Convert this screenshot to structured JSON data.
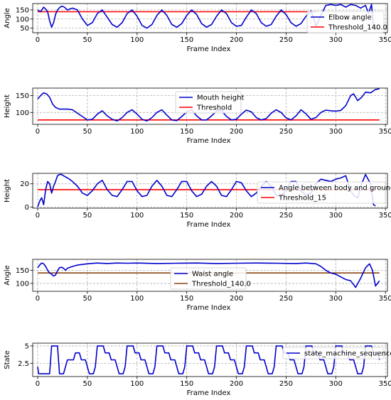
{
  "chart_data": [
    {
      "type": "line",
      "xlabel": "Frame Index",
      "ylabel": "Angle",
      "xlim": [
        -5,
        352
      ],
      "ylim": [
        25,
        185
      ],
      "xticks": [
        0,
        50,
        100,
        150,
        200,
        250,
        300,
        350
      ],
      "yticks": [
        50,
        100,
        150
      ],
      "grid": true,
      "legend_position": "right",
      "series": [
        {
          "name": "Elbow angle",
          "color": "#0000cc",
          "x": [
            0,
            3,
            6,
            8,
            10,
            12,
            14,
            16,
            18,
            20,
            22,
            24,
            26,
            28,
            30,
            35,
            40,
            45,
            50,
            55,
            60,
            65,
            70,
            75,
            80,
            85,
            90,
            95,
            100,
            105,
            110,
            115,
            120,
            125,
            130,
            135,
            140,
            145,
            150,
            155,
            160,
            165,
            170,
            175,
            180,
            185,
            190,
            195,
            200,
            205,
            210,
            215,
            220,
            225,
            230,
            235,
            240,
            245,
            250,
            255,
            260,
            265,
            270,
            275,
            278,
            280,
            285,
            290,
            295,
            300,
            305,
            310,
            315,
            320,
            325,
            330,
            333,
            336,
            338,
            340
          ],
          "y": [
            150,
            140,
            165,
            155,
            140,
            90,
            55,
            80,
            125,
            150,
            162,
            170,
            168,
            160,
            150,
            160,
            150,
            100,
            65,
            80,
            130,
            150,
            110,
            70,
            55,
            80,
            130,
            150,
            115,
            65,
            50,
            70,
            120,
            150,
            120,
            70,
            55,
            75,
            120,
            150,
            125,
            75,
            55,
            70,
            115,
            150,
            130,
            80,
            60,
            65,
            110,
            150,
            130,
            80,
            60,
            70,
            115,
            150,
            125,
            80,
            60,
            75,
            115,
            145,
            100,
            60,
            120,
            175,
            180,
            175,
            180,
            165,
            180,
            175,
            160,
            175,
            130,
            180,
            60,
            40
          ]
        },
        {
          "name": "Threshold_140.0",
          "color": "#ff0000",
          "x": [
            0,
            280
          ],
          "y": [
            140,
            140
          ]
        }
      ]
    },
    {
      "type": "line",
      "xlabel": "Frame Index",
      "ylabel": "Height",
      "xlim": [
        -5,
        352
      ],
      "ylim": [
        65,
        172
      ],
      "xticks": [
        0,
        50,
        100,
        150,
        200,
        250,
        300,
        350
      ],
      "yticks": [
        100,
        150
      ],
      "grid": true,
      "legend_position": "upper center",
      "series": [
        {
          "name": "Mouth height",
          "color": "#0000cc",
          "x": [
            0,
            3,
            6,
            9,
            12,
            15,
            18,
            22,
            26,
            30,
            35,
            40,
            45,
            50,
            55,
            60,
            65,
            70,
            75,
            80,
            85,
            90,
            95,
            100,
            105,
            110,
            115,
            120,
            125,
            130,
            135,
            140,
            145,
            150,
            155,
            160,
            165,
            170,
            175,
            180,
            185,
            190,
            195,
            200,
            205,
            210,
            215,
            220,
            225,
            230,
            235,
            240,
            245,
            250,
            255,
            260,
            265,
            270,
            275,
            280,
            285,
            290,
            295,
            300,
            305,
            310,
            315,
            318,
            322,
            326,
            330,
            335,
            340,
            344
          ],
          "y": [
            140,
            150,
            158,
            155,
            145,
            125,
            115,
            110,
            110,
            110,
            108,
            98,
            88,
            78,
            80,
            95,
            105,
            90,
            80,
            75,
            85,
            100,
            108,
            95,
            80,
            75,
            85,
            100,
            108,
            92,
            78,
            76,
            88,
            102,
            108,
            90,
            78,
            78,
            90,
            104,
            106,
            88,
            78,
            80,
            95,
            107,
            102,
            85,
            78,
            82,
            98,
            108,
            100,
            84,
            78,
            90,
            108,
            96,
            80,
            85,
            100,
            107,
            105,
            104,
            106,
            120,
            150,
            155,
            135,
            145,
            160,
            158,
            168,
            170
          ]
        },
        {
          "name": "Threshold",
          "color": "#ff0000",
          "x": [
            0,
            344
          ],
          "y": [
            78,
            78
          ]
        }
      ]
    },
    {
      "type": "line",
      "xlabel": "Frame Index",
      "ylabel": "Height",
      "xlim": [
        -5,
        352
      ],
      "ylim": [
        -1,
        29
      ],
      "xticks": [
        0,
        50,
        100,
        150,
        200,
        250,
        300,
        350
      ],
      "yticks": [
        0,
        20
      ],
      "grid": true,
      "legend_position": "right",
      "series": [
        {
          "name": "Angle between body and ground",
          "color": "#0000cc",
          "x": [
            0,
            2,
            4,
            6,
            8,
            10,
            12,
            14,
            16,
            18,
            20,
            22,
            24,
            26,
            28,
            30,
            32,
            35,
            40,
            45,
            50,
            55,
            60,
            65,
            70,
            75,
            80,
            85,
            90,
            95,
            100,
            105,
            110,
            115,
            120,
            125,
            130,
            135,
            140,
            145,
            150,
            155,
            160,
            165,
            170,
            175,
            180,
            185,
            190,
            195,
            200,
            205,
            210,
            215,
            220,
            225,
            230,
            235,
            240,
            245,
            250,
            255,
            260,
            265,
            270,
            275,
            280,
            285,
            290,
            295,
            300,
            305,
            310,
            315,
            318,
            322,
            326,
            330,
            335,
            338,
            340
          ],
          "y": [
            0,
            5,
            8,
            2,
            15,
            22,
            20,
            12,
            18,
            22,
            27,
            28,
            28,
            27,
            26,
            25,
            24,
            22,
            18,
            12,
            10,
            14,
            20,
            23,
            15,
            10,
            9,
            15,
            22,
            22,
            14,
            9,
            10,
            18,
            23,
            18,
            10,
            9,
            15,
            22,
            22,
            14,
            9,
            11,
            18,
            22,
            18,
            10,
            9,
            15,
            22,
            21,
            14,
            9,
            12,
            18,
            22,
            18,
            10,
            9,
            15,
            22,
            22,
            14,
            10,
            12,
            20,
            24,
            23,
            22,
            24,
            25,
            27,
            14,
            10,
            8,
            20,
            28,
            20,
            2,
            1
          ]
        },
        {
          "name": "Threshold_15",
          "color": "#ff0000",
          "x": [
            0,
            340
          ],
          "y": [
            15,
            15
          ]
        }
      ]
    },
    {
      "type": "line",
      "xlabel": "Frame Index",
      "ylabel": "Angle",
      "xlim": [
        -5,
        352
      ],
      "ylim": [
        70,
        192
      ],
      "xticks": [
        0,
        50,
        100,
        150,
        200,
        250,
        300,
        350
      ],
      "yticks": [
        100,
        150
      ],
      "grid": true,
      "legend_position": "center",
      "series": [
        {
          "name": "Waist angle",
          "color": "#0000cc",
          "x": [
            0,
            2,
            4,
            6,
            8,
            10,
            12,
            14,
            16,
            18,
            20,
            22,
            24,
            26,
            28,
            30,
            35,
            40,
            50,
            60,
            70,
            80,
            90,
            100,
            120,
            140,
            160,
            180,
            200,
            220,
            240,
            260,
            270,
            280,
            285,
            290,
            295,
            300,
            305,
            310,
            315,
            320,
            325,
            330,
            334,
            337,
            340,
            342,
            344
          ],
          "y": [
            160,
            170,
            178,
            175,
            165,
            150,
            140,
            135,
            128,
            132,
            148,
            160,
            162,
            158,
            150,
            158,
            165,
            170,
            175,
            178,
            176,
            178,
            177,
            178,
            176,
            177,
            178,
            176,
            177,
            178,
            177,
            176,
            178,
            175,
            165,
            150,
            140,
            135,
            125,
            115,
            110,
            85,
            120,
            160,
            175,
            150,
            90,
            100,
            110
          ]
        },
        {
          "name": "Threshold_140.0",
          "color": "#8b4513",
          "x": [
            0,
            344
          ],
          "y": [
            140,
            140
          ]
        }
      ]
    },
    {
      "type": "line",
      "xlabel": "Frame Index",
      "ylabel": "State",
      "xlim": [
        -5,
        352
      ],
      "ylim": [
        0.6,
        5.4
      ],
      "xticks": [
        0,
        50,
        100,
        150,
        200,
        250,
        300,
        350
      ],
      "yticks": [
        2.5,
        5.0
      ],
      "grid": true,
      "legend_position": "upper right",
      "series": [
        {
          "name": "state_machine_sequence",
          "color": "#0000cc",
          "x": [
            0,
            1,
            2,
            4,
            6,
            8,
            10,
            12,
            14,
            16,
            20,
            22,
            24,
            26,
            28,
            30,
            36,
            38,
            42,
            44,
            48,
            50,
            52,
            54,
            56,
            58,
            60,
            66,
            68,
            72,
            74,
            78,
            80,
            82,
            84,
            86,
            88,
            90,
            96,
            98,
            102,
            104,
            108,
            110,
            112,
            114,
            116,
            118,
            120,
            126,
            128,
            132,
            134,
            138,
            140,
            142,
            144,
            146,
            148,
            150,
            156,
            158,
            162,
            164,
            168,
            170,
            172,
            174,
            176,
            178,
            180,
            186,
            188,
            192,
            194,
            198,
            200,
            202,
            204,
            206,
            208,
            210,
            216,
            218,
            222,
            224,
            228,
            230,
            232,
            234,
            236,
            238,
            240,
            246,
            248,
            252,
            254,
            258,
            260,
            262,
            264,
            266,
            268,
            270,
            276,
            278,
            282,
            284,
            288,
            290,
            292,
            294,
            296,
            298,
            300,
            306,
            308,
            312,
            314,
            318,
            320,
            322,
            324,
            326,
            328,
            330,
            336,
            338,
            342,
            344
          ],
          "y": [
            2,
            1,
            1,
            1,
            1,
            1,
            1,
            1,
            5,
            5,
            5,
            1,
            1,
            1,
            2,
            3,
            3,
            4,
            4,
            3,
            3,
            2,
            1,
            1,
            1,
            2,
            5,
            5,
            4,
            4,
            3,
            3,
            2,
            1,
            1,
            1,
            2,
            5,
            5,
            4,
            4,
            3,
            3,
            2,
            1,
            1,
            1,
            2,
            5,
            5,
            4,
            4,
            3,
            3,
            2,
            1,
            1,
            1,
            2,
            5,
            5,
            4,
            4,
            3,
            3,
            2,
            1,
            1,
            1,
            2,
            5,
            5,
            4,
            4,
            3,
            3,
            2,
            1,
            1,
            1,
            2,
            5,
            5,
            4,
            4,
            3,
            3,
            2,
            1,
            1,
            1,
            2,
            5,
            5,
            4,
            4,
            3,
            3,
            2,
            1,
            1,
            1,
            2,
            5,
            5,
            4,
            4,
            3,
            3,
            2,
            1,
            1,
            1,
            2,
            5,
            5,
            4,
            4,
            3,
            3,
            2,
            1,
            1,
            1,
            2,
            5,
            5,
            4,
            4,
            3
          ]
        }
      ]
    }
  ]
}
